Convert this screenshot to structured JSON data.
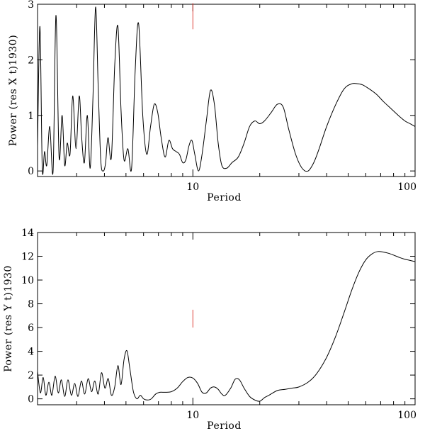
{
  "chart_data": [
    {
      "type": "line",
      "xlabel": "Period",
      "ylabel": "Power (res X t)1930)",
      "xscale": "log",
      "xlim": [
        2,
        100
      ],
      "ylim": [
        -0.1,
        3.0
      ],
      "x_tick_labels": [
        "10",
        "100"
      ],
      "y_ticks": [
        0,
        1,
        2,
        3
      ],
      "grid": false,
      "marker": {
        "x": 10,
        "y_range": [
          2.55,
          3.02
        ],
        "color": "#e0443c"
      },
      "series": [
        {
          "color": "#000000",
          "x": [
            2.0,
            2.05,
            2.1,
            2.15,
            2.2,
            2.27,
            2.35,
            2.42,
            2.5,
            2.58,
            2.65,
            2.72,
            2.8,
            2.88,
            2.98,
            3.08,
            3.16,
            3.25,
            3.35,
            3.45,
            3.55,
            3.65,
            3.75,
            3.85,
            3.95,
            4.05,
            4.15,
            4.3,
            4.45,
            4.6,
            4.75,
            4.9,
            5.1,
            5.3,
            5.5,
            5.7,
            5.95,
            6.2,
            6.45,
            6.7,
            6.95,
            7.2,
            7.5,
            7.8,
            8.1,
            8.4,
            8.7,
            9.0,
            9.3,
            9.6,
            9.9,
            10.2,
            10.6,
            11.0,
            11.5,
            12.0,
            12.5,
            13.0,
            13.5,
            14.2,
            15.0,
            16.0,
            17.0,
            18.0,
            19.0,
            20.0,
            21.0,
            22.5,
            24.0,
            25.5,
            27.0,
            29.0,
            31.0,
            33.0,
            35.0,
            37.0,
            40.0,
            44.0,
            48.0,
            52.0,
            55.0,
            58.0,
            62.0,
            67.0,
            72.0,
            78.0,
            84.0,
            90.0,
            95.0,
            100.0
          ],
          "y": [
            0.45,
            2.6,
            0.05,
            0.35,
            0.1,
            0.8,
            0.0,
            2.8,
            0.25,
            1.0,
            0.1,
            0.5,
            0.3,
            1.35,
            0.4,
            1.35,
            0.6,
            0.15,
            1.0,
            0.05,
            1.3,
            2.95,
            1.5,
            0.2,
            0.0,
            0.15,
            0.6,
            0.25,
            1.9,
            2.6,
            1.1,
            0.2,
            0.4,
            0.05,
            1.8,
            2.65,
            1.0,
            0.3,
            0.8,
            1.2,
            1.05,
            0.6,
            0.25,
            0.55,
            0.4,
            0.35,
            0.3,
            0.15,
            0.2,
            0.45,
            0.55,
            0.3,
            0.0,
            0.3,
            0.9,
            1.45,
            1.2,
            0.5,
            0.1,
            0.05,
            0.15,
            0.25,
            0.5,
            0.8,
            0.9,
            0.85,
            0.9,
            1.05,
            1.2,
            1.15,
            0.75,
            0.3,
            0.05,
            0.0,
            0.15,
            0.4,
            0.8,
            1.2,
            1.48,
            1.57,
            1.57,
            1.55,
            1.48,
            1.38,
            1.25,
            1.12,
            1.0,
            0.9,
            0.85,
            0.8
          ]
        }
      ]
    },
    {
      "type": "line",
      "xlabel": "Period",
      "ylabel": "Power (res Y t)1930",
      "xscale": "log",
      "xlim": [
        2,
        100
      ],
      "ylim": [
        -0.5,
        14.0
      ],
      "x_tick_labels": [
        "10",
        "100"
      ],
      "y_ticks": [
        0,
        2,
        4,
        6,
        8,
        10,
        12,
        14
      ],
      "grid": false,
      "marker": {
        "x": 10,
        "y_range": [
          6.0,
          7.5
        ],
        "color": "#e0443c"
      },
      "series": [
        {
          "color": "#000000",
          "x": [
            2.0,
            2.06,
            2.12,
            2.18,
            2.25,
            2.32,
            2.4,
            2.48,
            2.56,
            2.65,
            2.74,
            2.84,
            2.94,
            3.04,
            3.15,
            3.26,
            3.38,
            3.5,
            3.62,
            3.75,
            3.88,
            4.02,
            4.16,
            4.3,
            4.45,
            4.6,
            4.75,
            4.9,
            5.05,
            5.2,
            5.4,
            5.6,
            5.8,
            6.0,
            6.25,
            6.5,
            6.8,
            7.1,
            7.5,
            8.0,
            8.5,
            9.0,
            9.5,
            10.0,
            10.5,
            11.0,
            11.5,
            12.0,
            12.5,
            13.0,
            13.5,
            14.0,
            14.8,
            15.5,
            16.2,
            17.0,
            18.0,
            19.0,
            20.0,
            21.0,
            22.0,
            24.0,
            26.0,
            28.0,
            30.0,
            33.0,
            36.0,
            40.0,
            44.0,
            48.0,
            52.0,
            56.0,
            60.0,
            64.0,
            68.0,
            72.0,
            76.0,
            80.0,
            85.0,
            90.0,
            95.0,
            100.0
          ],
          "y": [
            2.3,
            0.5,
            1.8,
            0.3,
            1.4,
            0.3,
            1.9,
            0.5,
            1.6,
            0.2,
            1.6,
            0.3,
            1.3,
            0.2,
            1.5,
            0.4,
            1.7,
            0.6,
            1.5,
            0.4,
            2.2,
            0.9,
            1.7,
            0.3,
            1.0,
            2.8,
            1.2,
            3.3,
            4.05,
            2.6,
            0.6,
            0.0,
            0.3,
            0.0,
            -0.1,
            0.0,
            0.4,
            0.55,
            0.55,
            0.6,
            0.9,
            1.45,
            1.8,
            1.75,
            1.3,
            0.55,
            0.5,
            0.9,
            1.0,
            0.8,
            0.4,
            0.3,
            0.9,
            1.65,
            1.6,
            0.9,
            0.2,
            -0.1,
            -0.2,
            0.1,
            0.3,
            0.7,
            0.8,
            0.9,
            1.0,
            1.4,
            2.1,
            3.5,
            5.3,
            7.3,
            9.2,
            10.7,
            11.7,
            12.2,
            12.4,
            12.35,
            12.25,
            12.1,
            11.9,
            11.75,
            11.65,
            11.55
          ]
        }
      ]
    }
  ]
}
